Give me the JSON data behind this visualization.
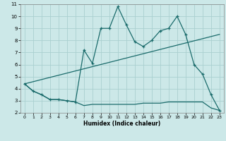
{
  "xlabel": "Humidex (Indice chaleur)",
  "bg_color": "#cce8e8",
  "grid_color": "#aacfcf",
  "line_color": "#1a6b6b",
  "xlim": [
    -0.5,
    23.5
  ],
  "ylim": [
    2,
    11
  ],
  "xticks": [
    0,
    1,
    2,
    3,
    4,
    5,
    6,
    7,
    8,
    9,
    10,
    11,
    12,
    13,
    14,
    15,
    16,
    17,
    18,
    19,
    20,
    21,
    22,
    23
  ],
  "yticks": [
    2,
    3,
    4,
    5,
    6,
    7,
    8,
    9,
    10,
    11
  ],
  "series": [
    {
      "x": [
        0,
        1,
        2,
        3,
        4,
        5,
        6,
        7,
        8,
        9,
        10,
        11,
        12,
        13,
        14,
        15,
        16,
        17,
        18,
        19,
        20,
        21,
        22,
        23
      ],
      "y": [
        4.4,
        3.8,
        3.5,
        3.1,
        3.1,
        3.0,
        2.9,
        2.6,
        2.7,
        2.7,
        2.7,
        2.7,
        2.7,
        2.7,
        2.8,
        2.8,
        2.8,
        2.9,
        2.9,
        2.9,
        2.9,
        2.9,
        2.4,
        2.2
      ],
      "has_markers": false,
      "linewidth": 0.9
    },
    {
      "x": [
        0,
        1,
        2,
        3,
        4,
        5,
        6,
        7,
        8,
        9,
        10,
        11,
        12,
        13,
        14,
        15,
        16,
        17,
        18,
        19,
        20,
        21,
        22,
        23
      ],
      "y": [
        4.4,
        3.8,
        3.5,
        3.1,
        3.1,
        3.0,
        2.9,
        7.2,
        6.1,
        9.0,
        9.0,
        10.8,
        9.3,
        7.9,
        7.5,
        8.0,
        8.8,
        9.0,
        10.0,
        8.5,
        6.0,
        5.2,
        3.5,
        2.2
      ],
      "has_markers": true,
      "linewidth": 0.9
    },
    {
      "x": [
        0,
        23
      ],
      "y": [
        4.4,
        8.5
      ],
      "has_markers": false,
      "linewidth": 0.9
    }
  ]
}
